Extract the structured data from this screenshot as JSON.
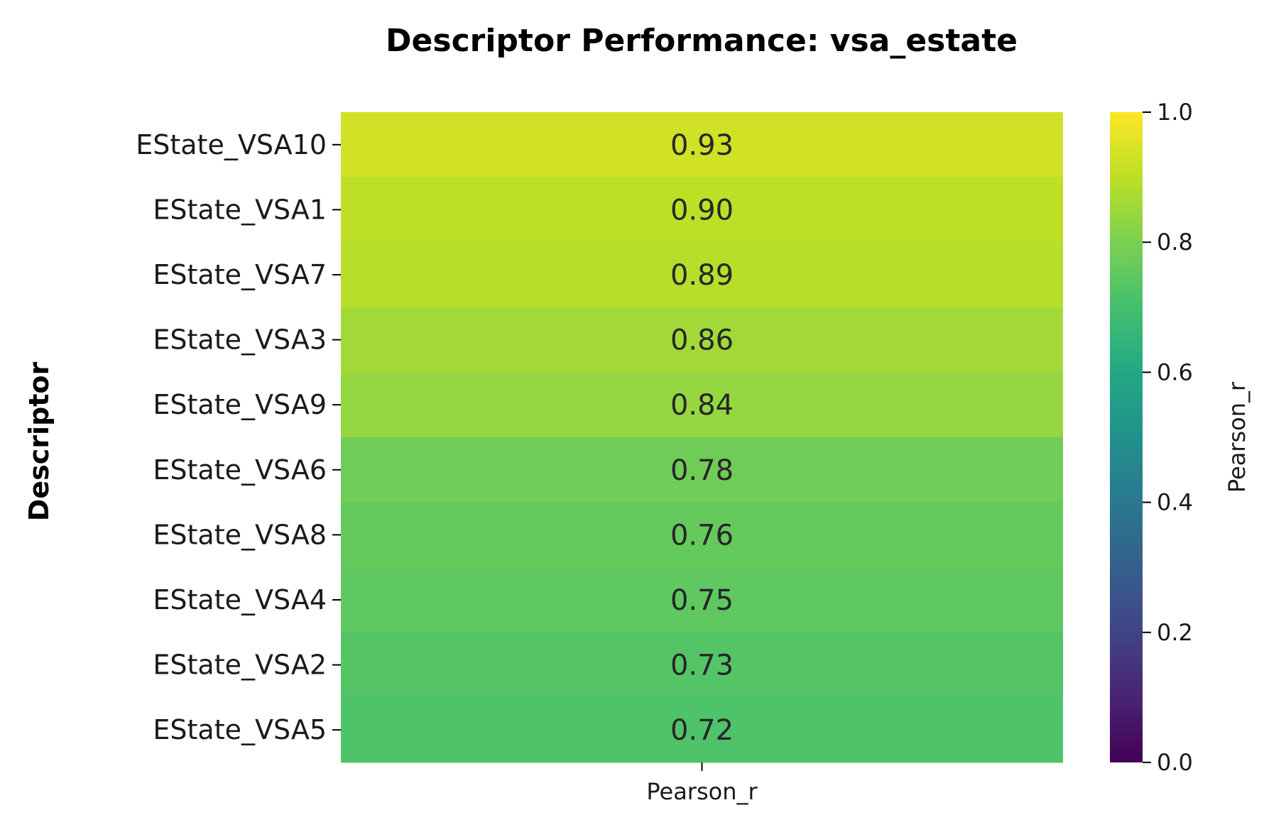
{
  "chart_data": {
    "type": "heatmap",
    "title": "Descriptor Performance: vsa_estate",
    "ylabel": "Descriptor",
    "xlabel": "",
    "columns": [
      "Pearson_r"
    ],
    "rows": [
      {
        "name": "EState_VSA10",
        "value": 0.93,
        "label": "0.93"
      },
      {
        "name": "EState_VSA1",
        "value": 0.9,
        "label": "0.90"
      },
      {
        "name": "EState_VSA7",
        "value": 0.89,
        "label": "0.89"
      },
      {
        "name": "EState_VSA3",
        "value": 0.86,
        "label": "0.86"
      },
      {
        "name": "EState_VSA9",
        "value": 0.84,
        "label": "0.84"
      },
      {
        "name": "EState_VSA6",
        "value": 0.78,
        "label": "0.78"
      },
      {
        "name": "EState_VSA8",
        "value": 0.76,
        "label": "0.76"
      },
      {
        "name": "EState_VSA4",
        "value": 0.75,
        "label": "0.75"
      },
      {
        "name": "EState_VSA2",
        "value": 0.73,
        "label": "0.73"
      },
      {
        "name": "EState_VSA5",
        "value": 0.72,
        "label": "0.72"
      }
    ],
    "colormap": "viridis",
    "colorbar": {
      "label": "Pearson_r",
      "range": [
        0.0,
        1.0
      ],
      "ticks": [
        "0.0",
        "0.2",
        "0.4",
        "0.6",
        "0.8",
        "1.0"
      ]
    },
    "grid": false
  }
}
